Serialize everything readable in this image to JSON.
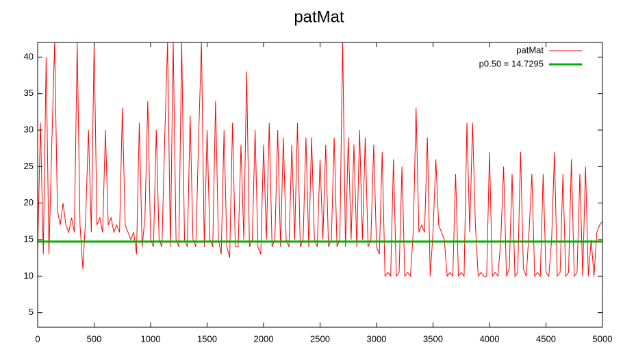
{
  "chart_data": {
    "type": "line",
    "title": "patMat",
    "x": [
      0,
      25,
      50,
      75,
      100,
      125,
      150,
      175,
      200,
      225,
      250,
      275,
      300,
      325,
      350,
      375,
      400,
      425,
      450,
      475,
      500,
      525,
      550,
      575,
      600,
      625,
      650,
      675,
      700,
      725,
      750,
      775,
      800,
      825,
      850,
      875,
      900,
      925,
      950,
      975,
      1000,
      1025,
      1050,
      1075,
      1100,
      1125,
      1150,
      1175,
      1200,
      1225,
      1250,
      1275,
      1300,
      1325,
      1350,
      1375,
      1400,
      1425,
      1450,
      1475,
      1500,
      1525,
      1550,
      1575,
      1600,
      1625,
      1650,
      1675,
      1700,
      1725,
      1750,
      1775,
      1800,
      1825,
      1850,
      1875,
      1900,
      1925,
      1950,
      1975,
      2000,
      2025,
      2050,
      2075,
      2100,
      2125,
      2150,
      2175,
      2200,
      2225,
      2250,
      2275,
      2300,
      2325,
      2350,
      2375,
      2400,
      2425,
      2450,
      2475,
      2500,
      2525,
      2550,
      2575,
      2600,
      2625,
      2650,
      2675,
      2700,
      2725,
      2750,
      2775,
      2800,
      2825,
      2850,
      2875,
      2900,
      2925,
      2950,
      2975,
      3000,
      3025,
      3050,
      3075,
      3100,
      3125,
      3150,
      3175,
      3200,
      3225,
      3250,
      3275,
      3300,
      3325,
      3350,
      3375,
      3400,
      3425,
      3450,
      3475,
      3500,
      3525,
      3550,
      3575,
      3600,
      3625,
      3650,
      3675,
      3700,
      3725,
      3750,
      3775,
      3800,
      3825,
      3850,
      3875,
      3900,
      3925,
      3950,
      3975,
      4000,
      4025,
      4050,
      4075,
      4100,
      4125,
      4150,
      4175,
      4200,
      4225,
      4250,
      4275,
      4300,
      4325,
      4350,
      4375,
      4400,
      4425,
      4450,
      4475,
      4500,
      4525,
      4550,
      4575,
      4600,
      4625,
      4650,
      4675,
      4700,
      4725,
      4750,
      4775,
      4800,
      4825,
      4850,
      4875,
      4900,
      4925,
      4950,
      4975,
      5000
    ],
    "series": [
      {
        "name": "patMat",
        "color": "#ff0000",
        "values": [
          13.5,
          31,
          13,
          40,
          13,
          28,
          42,
          19,
          17,
          20,
          17,
          16,
          18,
          16,
          42,
          17,
          11,
          18,
          30,
          16,
          42,
          17,
          18,
          16,
          30,
          17,
          18,
          16,
          17,
          16,
          33,
          17,
          16,
          15,
          16,
          13,
          31,
          14,
          18,
          34,
          15,
          14,
          30,
          15,
          14,
          29,
          42,
          14,
          42,
          15,
          14,
          42,
          15,
          14,
          32,
          15,
          14,
          29,
          42,
          14,
          30,
          15,
          14,
          34,
          15,
          13,
          30,
          14,
          12.5,
          31,
          14,
          14,
          28,
          15,
          38,
          14,
          15,
          30,
          14,
          13,
          28,
          15,
          31,
          14,
          15,
          30,
          14,
          29,
          15,
          14,
          28,
          15,
          31,
          14,
          15,
          29,
          14,
          29,
          15,
          14,
          26,
          15,
          28,
          14,
          15,
          29,
          14,
          15,
          42,
          14,
          29,
          15,
          28,
          14,
          30,
          15,
          29,
          14,
          15,
          28,
          14,
          13,
          27,
          10,
          10.5,
          10,
          26,
          10,
          10.5,
          25,
          10,
          10.5,
          10,
          16,
          33,
          16,
          17,
          16,
          29,
          10,
          16,
          26,
          17,
          16,
          15,
          10,
          10.5,
          10,
          24,
          10,
          10.5,
          10,
          31,
          16,
          31,
          17,
          10,
          10.5,
          10,
          10,
          27,
          10,
          10.5,
          10,
          15,
          25,
          10,
          11,
          24,
          10,
          10.5,
          27,
          11,
          10,
          16,
          24,
          10,
          10.5,
          10,
          24,
          10.5,
          10,
          15,
          27,
          10,
          10.5,
          24,
          10,
          10.5,
          26,
          10,
          10.5,
          24,
          10,
          25,
          10,
          15,
          10,
          16,
          17,
          17.5
        ]
      }
    ],
    "reference_line": {
      "name": "p0.50 = 14.7295",
      "value": 14.7295,
      "color": "#00b000"
    },
    "xlim": [
      0,
      5000
    ],
    "xticks": [
      0,
      500,
      1000,
      1500,
      2000,
      2500,
      3000,
      3500,
      4000,
      4500,
      5000
    ],
    "ylim": [
      3,
      42
    ],
    "yticks": [
      5,
      10,
      15,
      20,
      25,
      30,
      35,
      40
    ],
    "legend": "top-right"
  }
}
